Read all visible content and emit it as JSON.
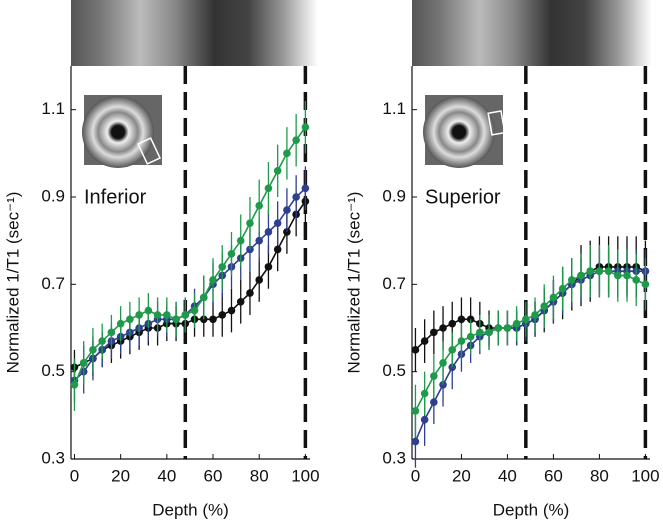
{
  "chart_data": [
    {
      "type": "line",
      "xlabel": "Depth (%)",
      "ylabel": "Normalized 1/T1 (sec⁻¹)",
      "annotation": "Inferior",
      "x": [
        0,
        4,
        8,
        12,
        16,
        20,
        24,
        28,
        32,
        36,
        40,
        44,
        48,
        52,
        56,
        60,
        64,
        68,
        72,
        76,
        80,
        84,
        88,
        92,
        96,
        100
      ],
      "xlim": [
        -1.5,
        102
      ],
      "ylim": [
        0.3,
        1.2
      ],
      "xticks": [
        0,
        20,
        40,
        60,
        80,
        100
      ],
      "yticks": [
        0.3,
        0.5,
        0.7,
        0.9,
        1.1
      ],
      "vlines": [
        48,
        100
      ],
      "series": [
        {
          "color": "#111111",
          "values": [
            0.51,
            0.52,
            0.53,
            0.55,
            0.56,
            0.57,
            0.58,
            0.59,
            0.6,
            0.6,
            0.61,
            0.61,
            0.61,
            0.62,
            0.62,
            0.62,
            0.63,
            0.64,
            0.66,
            0.68,
            0.71,
            0.74,
            0.78,
            0.82,
            0.86,
            0.89
          ],
          "errors": [
            0.04,
            0.04,
            0.04,
            0.04,
            0.04,
            0.04,
            0.04,
            0.04,
            0.04,
            0.04,
            0.04,
            0.04,
            0.04,
            0.04,
            0.04,
            0.04,
            0.05,
            0.05,
            0.05,
            0.05,
            0.05,
            0.05,
            0.05,
            0.05,
            0.05,
            0.05
          ]
        },
        {
          "color": "#2e3f8f",
          "values": [
            0.48,
            0.5,
            0.53,
            0.55,
            0.57,
            0.58,
            0.59,
            0.6,
            0.61,
            0.62,
            0.62,
            0.62,
            0.63,
            0.65,
            0.67,
            0.7,
            0.72,
            0.74,
            0.76,
            0.78,
            0.8,
            0.82,
            0.84,
            0.87,
            0.9,
            0.92
          ],
          "errors": [
            0.05,
            0.05,
            0.05,
            0.04,
            0.04,
            0.04,
            0.04,
            0.04,
            0.04,
            0.04,
            0.04,
            0.04,
            0.04,
            0.04,
            0.05,
            0.05,
            0.05,
            0.05,
            0.05,
            0.05,
            0.05,
            0.05,
            0.05,
            0.05,
            0.05,
            0.05
          ]
        },
        {
          "color": "#1e9a4a",
          "values": [
            0.47,
            0.52,
            0.55,
            0.57,
            0.59,
            0.61,
            0.62,
            0.63,
            0.64,
            0.63,
            0.63,
            0.62,
            0.63,
            0.64,
            0.67,
            0.71,
            0.74,
            0.77,
            0.8,
            0.84,
            0.88,
            0.92,
            0.96,
            1.0,
            1.03,
            1.06
          ],
          "errors": [
            0.06,
            0.05,
            0.05,
            0.04,
            0.04,
            0.04,
            0.04,
            0.04,
            0.04,
            0.04,
            0.04,
            0.04,
            0.04,
            0.04,
            0.05,
            0.05,
            0.05,
            0.05,
            0.06,
            0.06,
            0.06,
            0.06,
            0.06,
            0.06,
            0.06,
            0.06
          ]
        }
      ]
    },
    {
      "type": "line",
      "xlabel": "Depth (%)",
      "ylabel": "Normalized 1/T1 (sec⁻¹)",
      "annotation": "Superior",
      "x": [
        0,
        4,
        8,
        12,
        16,
        20,
        24,
        28,
        32,
        36,
        40,
        44,
        48,
        52,
        56,
        60,
        64,
        68,
        72,
        76,
        80,
        84,
        88,
        92,
        96,
        100
      ],
      "xlim": [
        -1.5,
        102
      ],
      "ylim": [
        0.3,
        1.2
      ],
      "xticks": [
        0,
        20,
        40,
        60,
        80,
        100
      ],
      "yticks": [
        0.3,
        0.5,
        0.7,
        0.9,
        1.1
      ],
      "vlines": [
        48,
        100
      ],
      "series": [
        {
          "color": "#111111",
          "values": [
            0.55,
            0.57,
            0.59,
            0.6,
            0.61,
            0.62,
            0.62,
            0.61,
            0.6,
            0.6,
            0.6,
            0.6,
            0.61,
            0.62,
            0.64,
            0.66,
            0.68,
            0.7,
            0.72,
            0.73,
            0.74,
            0.74,
            0.74,
            0.74,
            0.74,
            0.73
          ],
          "errors": [
            0.05,
            0.05,
            0.05,
            0.05,
            0.05,
            0.05,
            0.05,
            0.05,
            0.04,
            0.04,
            0.04,
            0.04,
            0.04,
            0.04,
            0.05,
            0.05,
            0.06,
            0.06,
            0.07,
            0.07,
            0.07,
            0.07,
            0.07,
            0.07,
            0.07,
            0.07
          ]
        },
        {
          "color": "#2e3f8f",
          "values": [
            0.34,
            0.39,
            0.43,
            0.47,
            0.51,
            0.54,
            0.56,
            0.58,
            0.59,
            0.6,
            0.6,
            0.6,
            0.61,
            0.62,
            0.64,
            0.66,
            0.68,
            0.7,
            0.71,
            0.72,
            0.73,
            0.73,
            0.73,
            0.73,
            0.73,
            0.73
          ],
          "errors": [
            0.06,
            0.06,
            0.05,
            0.05,
            0.05,
            0.04,
            0.04,
            0.04,
            0.04,
            0.04,
            0.04,
            0.04,
            0.04,
            0.04,
            0.04,
            0.05,
            0.05,
            0.05,
            0.05,
            0.05,
            0.05,
            0.05,
            0.05,
            0.05,
            0.05,
            0.05
          ]
        },
        {
          "color": "#1e9a4a",
          "values": [
            0.41,
            0.45,
            0.49,
            0.52,
            0.55,
            0.57,
            0.58,
            0.59,
            0.59,
            0.6,
            0.6,
            0.61,
            0.62,
            0.63,
            0.65,
            0.67,
            0.69,
            0.71,
            0.72,
            0.73,
            0.73,
            0.73,
            0.72,
            0.72,
            0.71,
            0.7
          ],
          "errors": [
            0.06,
            0.05,
            0.05,
            0.05,
            0.04,
            0.04,
            0.04,
            0.04,
            0.04,
            0.04,
            0.04,
            0.04,
            0.04,
            0.04,
            0.05,
            0.05,
            0.05,
            0.05,
            0.05,
            0.06,
            0.06,
            0.06,
            0.06,
            0.06,
            0.06,
            0.06
          ]
        }
      ]
    }
  ]
}
